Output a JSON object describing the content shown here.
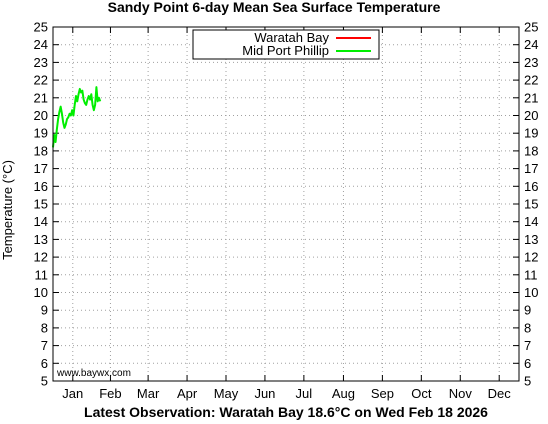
{
  "header": {
    "title": "Sandy Point 6-day Mean Sea Surface Temperature"
  },
  "footer": {
    "latest": "Latest Observation: Waratah Bay 18.6°C on Wed Feb 18 2026"
  },
  "credit": "www.baywx.com",
  "chart_data": {
    "type": "line",
    "title": "Sandy Point 6-day Mean Sea Surface Temperature",
    "xlabel": "",
    "ylabel": "Temperature (°C)",
    "ylim": [
      5,
      25
    ],
    "yticks": [
      5,
      6,
      7,
      8,
      9,
      10,
      11,
      12,
      13,
      14,
      15,
      16,
      17,
      18,
      19,
      20,
      21,
      22,
      23,
      24,
      25
    ],
    "xlim": [
      0,
      365
    ],
    "months": [
      {
        "label": "Jan",
        "day": 15.5
      },
      {
        "label": "Feb",
        "day": 45
      },
      {
        "label": "Mar",
        "day": 74.5
      },
      {
        "label": "Apr",
        "day": 105
      },
      {
        "label": "May",
        "day": 135.5
      },
      {
        "label": "Jun",
        "day": 166
      },
      {
        "label": "Jul",
        "day": 196.5
      },
      {
        "label": "Aug",
        "day": 227.5
      },
      {
        "label": "Sep",
        "day": 258
      },
      {
        "label": "Oct",
        "day": 288.5
      },
      {
        "label": "Nov",
        "day": 319
      },
      {
        "label": "Dec",
        "day": 349.5
      }
    ],
    "grid": true,
    "legend": "top-center",
    "series": [
      {
        "name": "Waratah Bay",
        "color": "#ff0000",
        "points": []
      },
      {
        "name": "Mid Port Phillip",
        "color": "#00ee00",
        "points": [
          [
            0,
            18.2
          ],
          [
            1,
            18.9
          ],
          [
            2,
            18.5
          ],
          [
            3,
            19.2
          ],
          [
            4,
            19.8
          ],
          [
            5,
            20.2
          ],
          [
            6,
            20.5
          ],
          [
            7,
            20.1
          ],
          [
            8,
            19.6
          ],
          [
            9,
            19.3
          ],
          [
            10,
            19.5
          ],
          [
            11,
            19.8
          ],
          [
            12,
            19.9
          ],
          [
            13,
            20.1
          ],
          [
            14,
            20.0
          ],
          [
            15,
            20.3
          ],
          [
            16,
            20.0
          ],
          [
            17,
            20.6
          ],
          [
            18,
            21.1
          ],
          [
            19,
            20.8
          ],
          [
            20,
            21.2
          ],
          [
            21,
            21.5
          ],
          [
            22,
            21.3
          ],
          [
            23,
            21.4
          ],
          [
            24,
            20.9
          ],
          [
            25,
            20.7
          ],
          [
            26,
            20.6
          ],
          [
            27,
            20.9
          ],
          [
            28,
            21.1
          ],
          [
            29,
            20.9
          ],
          [
            30,
            21.2
          ],
          [
            31,
            20.6
          ],
          [
            32,
            20.3
          ],
          [
            33,
            20.6
          ],
          [
            34,
            21.6
          ],
          [
            35,
            20.8
          ],
          [
            36,
            21.0
          ],
          [
            37,
            20.8
          ]
        ]
      }
    ]
  }
}
